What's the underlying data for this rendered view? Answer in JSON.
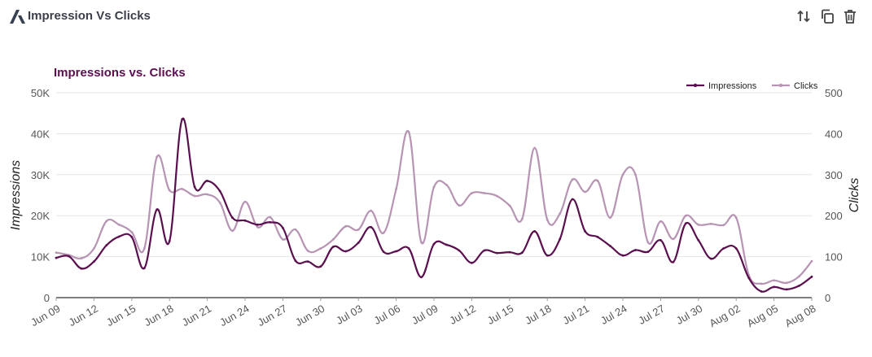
{
  "widget": {
    "title": "Impression Vs Clicks",
    "icons": [
      "logo-icon",
      "sort-icon",
      "copy-icon",
      "delete-icon"
    ]
  },
  "colors": {
    "impressions": "#5a0f4e",
    "clicks": "#b794b3",
    "title": "#5a0f4e",
    "grid": "#e6e6e6",
    "axis_text": "#555555"
  },
  "chart_data": {
    "type": "line",
    "title": "Impressions vs. Clicks",
    "ylabel": "Impressions",
    "y2label": "Clicks",
    "ylim": [
      0,
      50000
    ],
    "y2lim": [
      0,
      500
    ],
    "yticks": [
      "0",
      "10K",
      "20K",
      "30K",
      "40K",
      "50K"
    ],
    "y2ticks": [
      "0",
      "100",
      "200",
      "300",
      "400",
      "500"
    ],
    "xticks": [
      "Jun 09",
      "Jun 12",
      "Jun 15",
      "Jun 18",
      "Jun 21",
      "Jun 24",
      "Jun 27",
      "Jun 30",
      "Jul 03",
      "Jul 06",
      "Jul 09",
      "Jul 12",
      "Jul 15",
      "Jul 18",
      "Jul 21",
      "Jul 24",
      "Jul 27",
      "Jul 30",
      "Aug 02",
      "Aug 05",
      "Aug 08"
    ],
    "legend_position": "top-right",
    "series": [
      {
        "name": "Impressions",
        "axis": "left",
        "values": [
          9700,
          10100,
          7100,
          8800,
          12800,
          14900,
          14800,
          7200,
          21500,
          13800,
          43500,
          27000,
          28500,
          26000,
          19500,
          18800,
          17800,
          18400,
          17000,
          9000,
          8800,
          7600,
          12400,
          11300,
          13400,
          17200,
          11200,
          11300,
          12000,
          5000,
          13100,
          12900,
          11500,
          8500,
          11500,
          10900,
          11100,
          11000,
          16200,
          10300,
          14300,
          24000,
          16200,
          14800,
          12600,
          10300,
          11600,
          11200,
          14000,
          8700,
          18100,
          14000,
          9500,
          12000,
          12000,
          4800,
          1500,
          2600,
          2000,
          2900,
          5100
        ]
      },
      {
        "name": "Clicks",
        "axis": "right",
        "values": [
          110,
          104,
          96,
          120,
          187,
          178,
          160,
          120,
          343,
          262,
          265,
          248,
          252,
          232,
          163,
          234,
          172,
          196,
          142,
          166,
          114,
          120,
          142,
          174,
          166,
          212,
          158,
          265,
          404,
          135,
          270,
          275,
          225,
          255,
          255,
          248,
          225,
          192,
          365,
          190,
          205,
          288,
          258,
          285,
          195,
          300,
          300,
          135,
          186,
          143,
          200,
          178,
          180,
          177,
          195,
          55,
          34,
          42,
          36,
          52,
          89
        ]
      }
    ]
  }
}
